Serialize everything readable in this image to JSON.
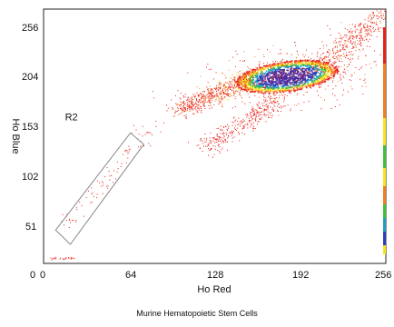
{
  "chart_data": {
    "type": "scatter",
    "title": "Murine Hematopoietic Stem Cells",
    "xlabel": "Ho Red",
    "ylabel": "Ho Blue",
    "xlim": [
      0,
      256
    ],
    "ylim": [
      0,
      267
    ],
    "x_ticks": [
      "0",
      "64",
      "128",
      "192",
      "256"
    ],
    "y_ticks": [
      "0",
      "51",
      "102",
      "153",
      "204",
      "256"
    ],
    "grid": false,
    "density_colors": [
      "#e8201c",
      "#f57c1f",
      "#f5e41f",
      "#3fbf3f",
      "#1f9fbf",
      "#2a3fbf",
      "#4a2a9f"
    ],
    "gate": {
      "label": "R2",
      "polygon": [
        [
          9,
          35
        ],
        [
          20,
          20
        ],
        [
          75,
          125
        ],
        [
          65,
          137
        ]
      ]
    },
    "populations": [
      {
        "role": "main-cluster",
        "center": [
          182,
          196
        ],
        "spread": [
          24,
          10
        ]
      },
      {
        "role": "diagonal-arm",
        "from": [
          100,
          160
        ],
        "to": [
          155,
          195
        ]
      },
      {
        "role": "side-arm",
        "from": [
          120,
          120
        ],
        "to": [
          175,
          170
        ]
      },
      {
        "role": "upper-tail",
        "from": [
          205,
          205
        ],
        "to": [
          255,
          262
        ]
      },
      {
        "role": "gate-trail",
        "from": [
          15,
          35
        ],
        "to": [
          85,
          150
        ]
      },
      {
        "role": "floor-points",
        "from": [
          6,
          5
        ],
        "to": [
          25,
          5
        ]
      }
    ]
  }
}
